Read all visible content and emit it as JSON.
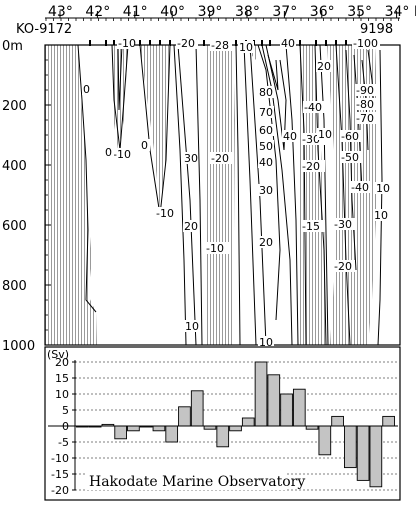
{
  "section": {
    "station_start": "KO-9172",
    "station_end": "9198",
    "lat_ticks": [
      "43°",
      "42°",
      "41°",
      "40°",
      "39°",
      "38°",
      "37°",
      "36°",
      "35°",
      "34° N"
    ],
    "depth_ticks": [
      "0m",
      "200",
      "400",
      "600",
      "800",
      "1000"
    ],
    "contour_labels": [
      "0",
      "-10",
      "-10",
      "0",
      "-20",
      "30",
      "-20",
      "20",
      "-10",
      "-10",
      "-30",
      "-28",
      "80",
      "70",
      "60",
      "50",
      "40",
      "30",
      "20",
      "10",
      "40",
      "20",
      "-40",
      "-30",
      "-20",
      "-15",
      "10",
      "-100",
      "-90",
      "-80",
      "-70",
      "-60",
      "-50",
      "-40",
      "10",
      "-30",
      "-20",
      "10",
      "10"
    ]
  },
  "chart_data": {
    "type": "bar",
    "unit_label": "(Sv)",
    "ylim": [
      -20,
      20
    ],
    "yticks": [
      "20",
      "15",
      "10",
      "5",
      "0",
      "-5",
      "-10",
      "-15",
      "-20"
    ],
    "grid": true,
    "values": [
      -0.3,
      -0.3,
      0.5,
      -4,
      -1.5,
      -0.3,
      -1.5,
      -5,
      6,
      11,
      -1,
      -6.5,
      -1.5,
      2.5,
      20,
      16,
      10,
      11.5,
      -1,
      -9,
      3,
      -13,
      -17,
      -19,
      3
    ],
    "annotation": "Hakodate Marine Observatory"
  }
}
